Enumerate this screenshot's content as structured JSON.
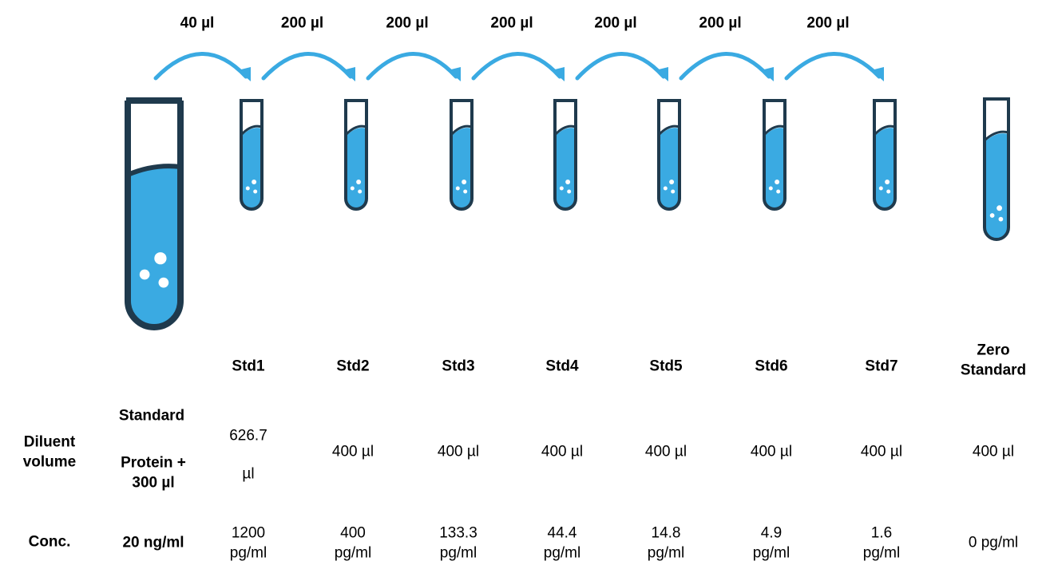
{
  "transfers": [
    "40 µl",
    "200 µl",
    "200 µl",
    "200 µl",
    "200 µl",
    "200 µl",
    "200 µl"
  ],
  "row_labels": {
    "diluent": "Diluent volume",
    "conc": "Conc."
  },
  "stock": {
    "diluent": [
      "Standard",
      "Protein + 300 µl"
    ],
    "conc": "20 ng/ml"
  },
  "standards": [
    {
      "name": "Std1",
      "diluent": "626.7 µl",
      "conc": "1200 pg/ml"
    },
    {
      "name": "Std2",
      "diluent": "400 µl",
      "conc": "400 pg/ml"
    },
    {
      "name": "Std3",
      "diluent": "400 µl",
      "conc": "133.3 pg/ml"
    },
    {
      "name": "Std4",
      "diluent": "400 µl",
      "conc": "44.4 pg/ml"
    },
    {
      "name": "Std5",
      "diluent": "400 µl",
      "conc": "14.8 pg/ml"
    },
    {
      "name": "Std6",
      "diluent": "400 µl",
      "conc": "4.9 pg/ml"
    },
    {
      "name": "Std7",
      "diluent": "400 µl",
      "conc": "1.6 pg/ml"
    },
    {
      "name": "Zero Standard",
      "diluent": "400 µl",
      "conc": "0 pg/ml"
    }
  ]
}
